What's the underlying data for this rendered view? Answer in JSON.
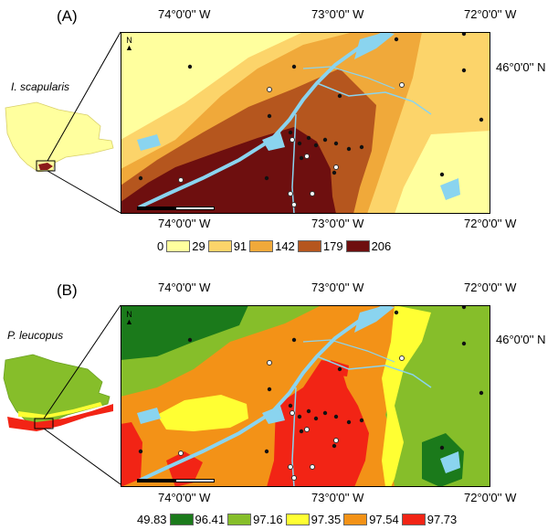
{
  "panelA": {
    "label": "(A)",
    "species": "I. scapularis",
    "top_coords": [
      "74°0'0'' W",
      "73°0'0'' W",
      "72°0'0'' W"
    ],
    "bottom_coords": [
      "74°0'0'' W",
      "73°0'0'' W",
      "72°0'0'' W"
    ],
    "right_coord": "46°0'0'' N",
    "legend": [
      {
        "label": "0",
        "color": "#ffff9e"
      },
      {
        "label": "29",
        "color": "#fcd46a"
      },
      {
        "label": "91",
        "color": "#f0a93a"
      },
      {
        "label": "142",
        "color": "#b5561e"
      },
      {
        "label": "179",
        "color": "#6e0f0f"
      },
      {
        "label": "206",
        "color": ""
      }
    ]
  },
  "panelB": {
    "label": "(B)",
    "species": "P. leucopus",
    "top_coords": [
      "74°0'0'' W",
      "73°0'0'' W",
      "72°0'0'' W"
    ],
    "bottom_coords": [
      "74°0'0'' W",
      "73°0'0'' W",
      "72°0'0'' W"
    ],
    "right_coord": "46°0'0'' N",
    "legend": [
      {
        "label": "49.83",
        "color": "#1b7a1b"
      },
      {
        "label": "96.41",
        "color": "#86be2a"
      },
      {
        "label": "97.16",
        "color": "#ffff33"
      },
      {
        "label": "97.35",
        "color": "#f39217"
      },
      {
        "label": "97.54",
        "color": "#f22415"
      },
      {
        "label": "97.73",
        "color": ""
      }
    ]
  },
  "colors": {
    "water": "#8ad4ef",
    "frame": "#000000",
    "sites": "#111111"
  }
}
